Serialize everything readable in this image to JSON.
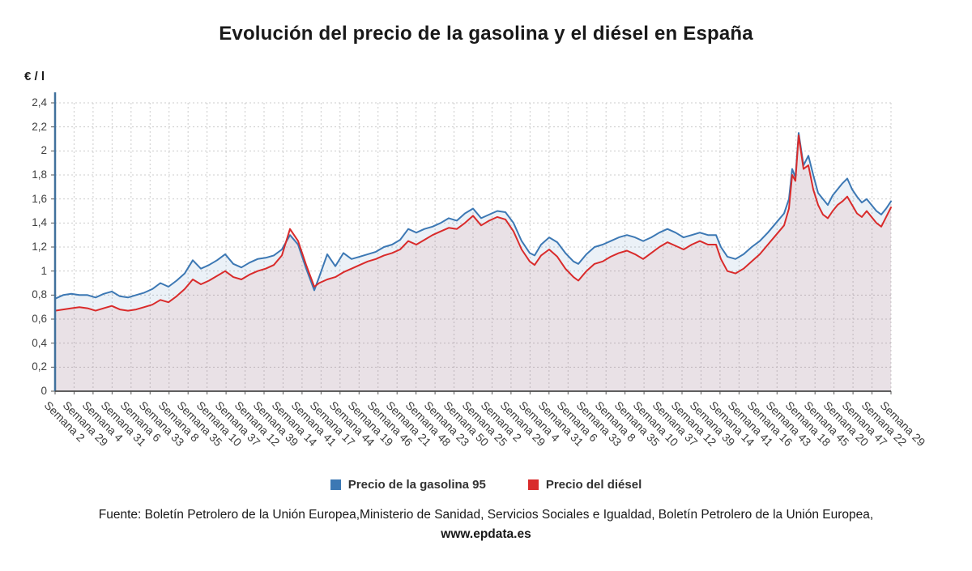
{
  "title": "Evolución del precio de la gasolina y el diésel en España",
  "y_axis_unit": "€ / l",
  "colors": {
    "gasolina": "#3c78b4",
    "diesel": "#d92b2b",
    "grid": "#cccccc",
    "y_axis": "#41719c",
    "x_axis": "#4a4a4a"
  },
  "legend": [
    {
      "label": "Precio de la gasolina 95",
      "color": "#3c78b4"
    },
    {
      "label": "Precio del diésel",
      "color": "#d92b2b"
    }
  ],
  "source": {
    "text": "Fuente: Boletín Petrolero de la Unión Europea,Ministerio de Sanidad, Servicios Sociales e Igualdad, Boletín Petrolero de la Unión Europea, ",
    "link": "www.epdata.es"
  },
  "chart_data": {
    "type": "line",
    "title": "Evolución del precio de la gasolina y el diésel en España",
    "xlabel": "Semana",
    "ylabel": "€ / l",
    "ylim": [
      0,
      2.4
    ],
    "grid": true,
    "legend_position": "bottom",
    "y_ticks": [
      {
        "value": 0,
        "label": "0"
      },
      {
        "value": 0.2,
        "label": "0,2"
      },
      {
        "value": 0.4,
        "label": "0,4"
      },
      {
        "value": 0.6,
        "label": "0,6"
      },
      {
        "value": 0.8,
        "label": "0,8"
      },
      {
        "value": 1,
        "label": "1"
      },
      {
        "value": 1.2,
        "label": "1,2"
      },
      {
        "value": 1.4,
        "label": "1,4"
      },
      {
        "value": 1.6,
        "label": "1,6"
      },
      {
        "value": 1.8,
        "label": "1,8"
      },
      {
        "value": 2,
        "label": "2"
      },
      {
        "value": 2.2,
        "label": "2,2"
      },
      {
        "value": 2.4,
        "label": "2,4"
      }
    ],
    "x_tick_labels": [
      "Semana 2",
      "Semana 29",
      "Semana 4",
      "Semana 31",
      "Semana 6",
      "Semana 33",
      "Semana 8",
      "Semana 35",
      "Semana 10",
      "Semana 37",
      "Semana 12",
      "Semana 39",
      "Semana 14",
      "Semana 41",
      "Semana 17",
      "Semana 44",
      "Semana 19",
      "Semana 46",
      "Semana 21",
      "Semana 48",
      "Semana 23",
      "Semana 50",
      "Semana 25",
      "Semana 2",
      "Semana 29",
      "Semana 4",
      "Semana 31",
      "Semana 6",
      "Semana 33",
      "Semana 8",
      "Semana 35",
      "Semana 10",
      "Semana 37",
      "Semana 12",
      "Semana 39",
      "Semana 14",
      "Semana 41",
      "Semana 16",
      "Semana 43",
      "Semana 18",
      "Semana 45",
      "Semana 20",
      "Semana 47",
      "Semana 22",
      "Semana 29"
    ],
    "x": [
      68,
      78,
      88,
      98,
      108,
      118,
      128,
      138,
      148,
      158,
      168,
      178,
      188,
      198,
      208,
      218,
      228,
      238,
      248,
      258,
      268,
      278,
      288,
      298,
      308,
      318,
      328,
      338,
      348,
      358,
      368,
      378,
      388,
      394,
      404,
      414,
      424,
      434,
      444,
      454,
      464,
      474,
      484,
      494,
      504,
      514,
      524,
      534,
      544,
      554,
      564,
      574,
      584,
      594,
      604,
      614,
      624,
      634,
      644,
      654,
      660,
      668,
      678,
      688,
      698,
      708,
      714,
      724,
      734,
      744,
      754,
      764,
      774,
      784,
      794,
      804,
      814,
      824,
      834,
      844,
      854,
      864,
      874,
      884,
      890,
      898,
      908,
      918,
      928,
      938,
      948,
      958,
      968,
      974,
      978,
      982,
      986,
      992,
      998,
      1004,
      1010,
      1016,
      1022,
      1028,
      1034,
      1040,
      1046,
      1052,
      1058,
      1064,
      1070,
      1076,
      1082,
      1088,
      1094,
      1100
    ],
    "series": [
      {
        "name": "Precio de la gasolina 95",
        "color": "#3c78b4",
        "fill": "rgba(60,120,180,0.10)",
        "values": [
          0.77,
          0.8,
          0.81,
          0.8,
          0.8,
          0.78,
          0.81,
          0.83,
          0.79,
          0.78,
          0.8,
          0.82,
          0.85,
          0.9,
          0.87,
          0.92,
          0.98,
          1.09,
          1.02,
          1.05,
          1.09,
          1.14,
          1.06,
          1.03,
          1.07,
          1.1,
          1.11,
          1.13,
          1.18,
          1.3,
          1.22,
          1.02,
          0.84,
          0.95,
          1.14,
          1.04,
          1.15,
          1.1,
          1.12,
          1.14,
          1.16,
          1.2,
          1.22,
          1.26,
          1.35,
          1.32,
          1.35,
          1.37,
          1.4,
          1.44,
          1.42,
          1.48,
          1.52,
          1.44,
          1.47,
          1.5,
          1.49,
          1.4,
          1.25,
          1.15,
          1.13,
          1.22,
          1.28,
          1.24,
          1.15,
          1.08,
          1.06,
          1.14,
          1.2,
          1.22,
          1.25,
          1.28,
          1.3,
          1.28,
          1.25,
          1.28,
          1.32,
          1.35,
          1.32,
          1.28,
          1.3,
          1.32,
          1.3,
          1.3,
          1.2,
          1.12,
          1.1,
          1.14,
          1.2,
          1.25,
          1.32,
          1.4,
          1.48,
          1.6,
          1.85,
          1.78,
          2.15,
          1.88,
          1.96,
          1.8,
          1.65,
          1.6,
          1.55,
          1.63,
          1.68,
          1.73,
          1.77,
          1.68,
          1.62,
          1.57,
          1.6,
          1.55,
          1.5,
          1.47,
          1.52,
          1.58
        ]
      },
      {
        "name": "Precio del diésel",
        "color": "#d92b2b",
        "fill": "rgba(217,43,43,0.08)",
        "values": [
          0.67,
          0.68,
          0.69,
          0.7,
          0.69,
          0.67,
          0.69,
          0.71,
          0.68,
          0.67,
          0.68,
          0.7,
          0.72,
          0.76,
          0.74,
          0.79,
          0.85,
          0.93,
          0.89,
          0.92,
          0.96,
          1.0,
          0.95,
          0.93,
          0.97,
          1.0,
          1.02,
          1.05,
          1.13,
          1.35,
          1.25,
          1.05,
          0.87,
          0.9,
          0.93,
          0.95,
          0.99,
          1.02,
          1.05,
          1.08,
          1.1,
          1.13,
          1.15,
          1.18,
          1.25,
          1.22,
          1.26,
          1.3,
          1.33,
          1.36,
          1.35,
          1.4,
          1.46,
          1.38,
          1.42,
          1.45,
          1.43,
          1.33,
          1.18,
          1.08,
          1.05,
          1.13,
          1.18,
          1.12,
          1.02,
          0.95,
          0.92,
          1.0,
          1.06,
          1.08,
          1.12,
          1.15,
          1.17,
          1.14,
          1.1,
          1.15,
          1.2,
          1.24,
          1.21,
          1.18,
          1.22,
          1.25,
          1.22,
          1.22,
          1.1,
          1.0,
          0.98,
          1.02,
          1.08,
          1.14,
          1.22,
          1.3,
          1.38,
          1.52,
          1.8,
          1.75,
          2.13,
          1.85,
          1.88,
          1.68,
          1.55,
          1.47,
          1.44,
          1.5,
          1.55,
          1.58,
          1.62,
          1.55,
          1.48,
          1.45,
          1.5,
          1.45,
          1.4,
          1.37,
          1.45,
          1.53
        ]
      }
    ]
  }
}
